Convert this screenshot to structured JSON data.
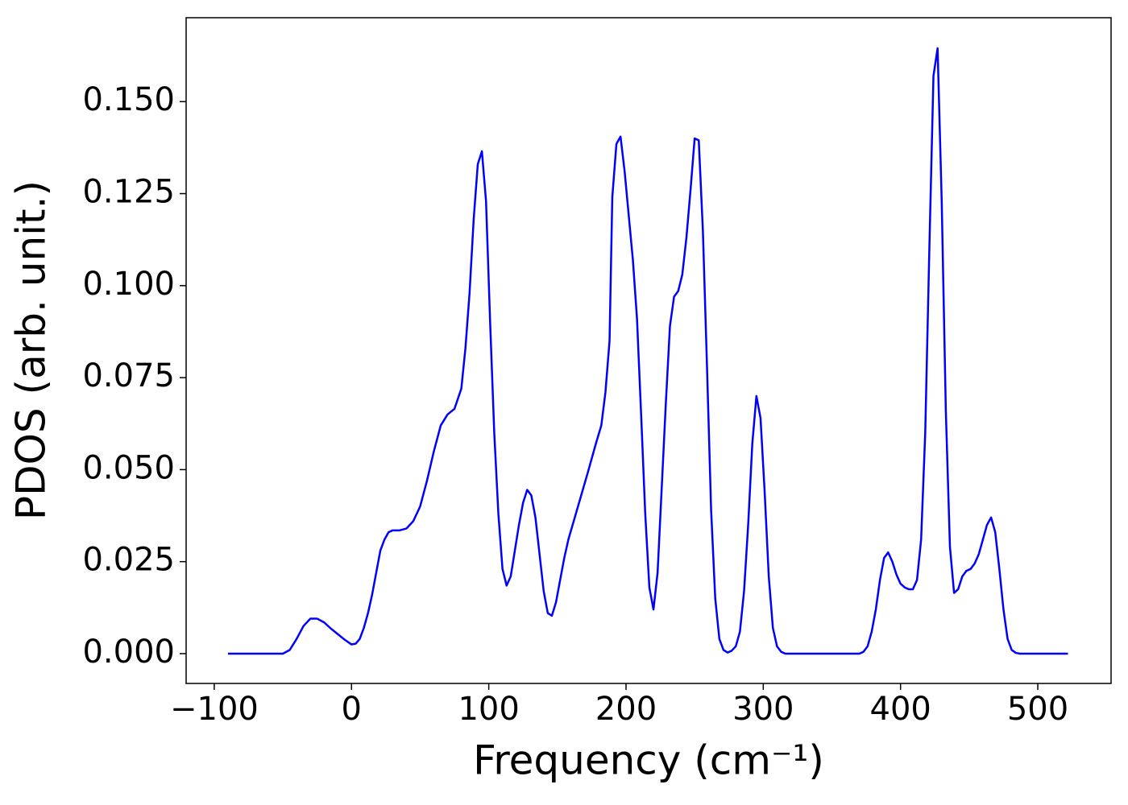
{
  "chart_data": {
    "type": "line",
    "xlabel": "Frequency (cm⁻¹)",
    "ylabel": "PDOS (arb. unit.)",
    "xlim": [
      -120.5,
      553.4
    ],
    "ylim": [
      -0.0081,
      0.1728
    ],
    "xticks": [
      {
        "value": -100,
        "label": "−100"
      },
      0,
      100,
      200,
      300,
      400,
      500
    ],
    "yticks": [
      {
        "value": 0,
        "label": "0.000"
      },
      {
        "value": 0.025,
        "label": "0.025"
      },
      {
        "value": 0.05,
        "label": "0.050"
      },
      {
        "value": 0.075,
        "label": "0.075"
      },
      {
        "value": 0.1,
        "label": "0.100"
      },
      {
        "value": 0.125,
        "label": "0.125"
      },
      {
        "value": 0.15,
        "label": "0.150"
      }
    ],
    "grid": false,
    "series": [
      {
        "name": "PDOS",
        "color": "#0000ff",
        "x": [
          -90,
          -50,
          -45,
          -40,
          -35,
          -30,
          -25,
          -20,
          -15,
          -10,
          -5,
          0,
          3,
          6,
          9,
          12,
          15,
          18,
          21,
          24,
          27,
          30,
          35,
          40,
          45,
          50,
          55,
          60,
          65,
          70,
          75,
          80,
          83,
          86,
          89,
          92,
          95,
          98,
          101,
          104,
          107,
          110,
          113,
          116,
          119,
          122,
          125,
          128,
          131,
          134,
          137,
          140,
          143,
          146,
          149,
          152,
          155,
          158,
          165,
          172,
          178,
          182,
          185,
          188,
          190,
          193,
          196,
          199,
          202,
          205,
          208,
          211,
          214,
          217,
          220,
          223,
          226,
          229,
          232,
          235,
          238,
          241,
          244,
          247,
          250,
          253,
          256,
          259,
          262,
          265,
          268,
          271,
          274,
          277,
          280,
          283,
          286,
          289,
          292,
          295,
          298,
          301,
          304,
          307,
          310,
          313,
          316,
          370,
          373,
          376,
          379,
          382,
          385,
          388,
          391,
          394,
          397,
          400,
          403,
          406,
          409,
          412,
          415,
          418,
          421,
          424,
          427,
          430,
          433,
          436,
          439,
          442,
          445,
          448,
          451,
          454,
          457,
          460,
          463,
          466,
          469,
          472,
          475,
          478,
          481,
          484,
          487,
          522
        ],
        "values": [
          0,
          0,
          0.001,
          0.004,
          0.0075,
          0.0095,
          0.0095,
          0.0085,
          0.0068,
          0.0053,
          0.0038,
          0.0025,
          0.0027,
          0.004,
          0.007,
          0.011,
          0.016,
          0.022,
          0.028,
          0.031,
          0.033,
          0.0335,
          0.0335,
          0.034,
          0.036,
          0.04,
          0.047,
          0.055,
          0.062,
          0.065,
          0.0665,
          0.072,
          0.083,
          0.098,
          0.118,
          0.133,
          0.1365,
          0.123,
          0.09,
          0.06,
          0.038,
          0.023,
          0.0185,
          0.021,
          0.028,
          0.035,
          0.041,
          0.0445,
          0.043,
          0.037,
          0.027,
          0.017,
          0.011,
          0.0103,
          0.014,
          0.02,
          0.026,
          0.031,
          0.04,
          0.049,
          0.057,
          0.062,
          0.071,
          0.085,
          0.124,
          0.1385,
          0.1405,
          0.131,
          0.119,
          0.107,
          0.091,
          0.065,
          0.038,
          0.018,
          0.012,
          0.022,
          0.045,
          0.068,
          0.089,
          0.097,
          0.0985,
          0.103,
          0.113,
          0.126,
          0.14,
          0.1395,
          0.115,
          0.078,
          0.039,
          0.015,
          0.004,
          0.001,
          0.0003,
          0.0008,
          0.002,
          0.006,
          0.017,
          0.035,
          0.057,
          0.07,
          0.064,
          0.044,
          0.021,
          0.007,
          0.002,
          0.0005,
          0,
          0,
          0.0005,
          0.002,
          0.006,
          0.012,
          0.02,
          0.026,
          0.0275,
          0.025,
          0.0215,
          0.019,
          0.018,
          0.0175,
          0.0175,
          0.02,
          0.031,
          0.06,
          0.11,
          0.157,
          0.1645,
          0.123,
          0.066,
          0.029,
          0.0165,
          0.0175,
          0.021,
          0.0225,
          0.023,
          0.0245,
          0.027,
          0.031,
          0.035,
          0.037,
          0.033,
          0.023,
          0.012,
          0.004,
          0.001,
          0.0002,
          0,
          0
        ]
      }
    ]
  }
}
